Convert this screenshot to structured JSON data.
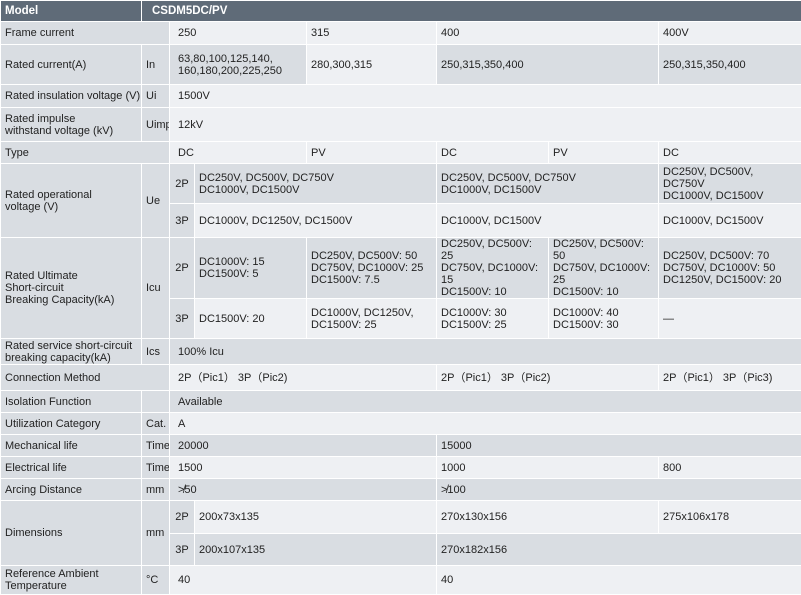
{
  "header": {
    "model_label": "Model",
    "model_value": "CSDM5DC/PV"
  },
  "frame_current": {
    "label": "Frame current",
    "v250": "250",
    "v315": "315",
    "v400": "400",
    "v400v": "400V"
  },
  "rated_current": {
    "label": "Rated current(A)",
    "sym": "In",
    "c250": "63,80,100,125,140,\n160,180,200,225,250",
    "c315": "280,300,315",
    "c400": "250,315,350,400",
    "c400v": "250,315,350,400"
  },
  "insulation": {
    "label": "Rated insulation voltage (V)",
    "sym": "Ui",
    "value": "1500V"
  },
  "impulse": {
    "label": "Rated impulse\nwithstand voltage (kV)",
    "sym": "Uimp",
    "value": "12kV"
  },
  "type": {
    "label": "Type",
    "dc1": "DC",
    "pv1": "PV",
    "dc2": "DC",
    "pv2": "PV",
    "dc3": "DC"
  },
  "operational": {
    "label": "Rated operational\nvoltage (V)",
    "sym": "Ue",
    "p2": "2P",
    "p3": "3P",
    "r2_a": "DC250V, DC500V, DC750V\nDC1000V, DC1500V",
    "r2_b": "DC250V, DC500V, DC750V\nDC1000V, DC1500V",
    "r2_c": "DC250V, DC500V, DC750V\nDC1000V, DC1500V",
    "r3_a": "DC1000V, DC1250V, DC1500V",
    "r3_b": "DC1000V, DC1500V",
    "r3_c": "DC1000V, DC1500V"
  },
  "ultimate": {
    "label": "Rated Ultimate\nShort-circuit\nBreaking Capacity(kA)",
    "sym": "Icu",
    "p2": "2P",
    "p3": "3P",
    "r2_1": "DC1000V: 15\nDC1500V: 5",
    "r2_2": "DC250V, DC500V: 50\nDC750V, DC1000V: 25\nDC1500V: 7.5",
    "r2_3": "DC250V, DC500V: 25\nDC750V, DC1000V: 15\nDC1500V: 10",
    "r2_4": "DC250V, DC500V: 50\nDC750V, DC1000V: 25\nDC1500V: 10",
    "r2_5": "DC250V, DC500V: 70\nDC750V, DC1000V: 50\nDC1250V, DC1500V: 20",
    "r3_1": "DC1500V: 20",
    "r3_2": "DC1000V, DC1250V,\nDC1500V: 25",
    "r3_3": "DC1000V: 30\nDC1500V: 25",
    "r3_4": "DC1000V: 40\nDC1500V: 30",
    "r3_5": "—"
  },
  "service": {
    "label": "Rated service short-circuit\nbreaking capacity(kA)",
    "sym": "Ics",
    "value": "100% Icu"
  },
  "connection": {
    "label": "Connection Method",
    "a": "2P（Pic1） 3P（Pic2)",
    "b": "2P（Pic1） 3P（Pic2)",
    "c": "2P（Pic1） 3P（Pic3)"
  },
  "isolation": {
    "label": "Isolation Function",
    "value": "Available"
  },
  "utilization": {
    "label": "Utilization Category",
    "sym": "Cat.",
    "value": "A"
  },
  "mechanical": {
    "label": "Mechanical life",
    "sym": "Times",
    "a": "20000",
    "b": "15000"
  },
  "electrical": {
    "label": "Electrical life",
    "sym": "Times",
    "a": "1500",
    "b": "1000",
    "c": "800"
  },
  "arcing": {
    "label": "Arcing Distance",
    "sym": "mm",
    "a": "≯50",
    "b": "≯100"
  },
  "dimensions": {
    "label": "Dimensions",
    "sym": "mm",
    "p2": "2P",
    "p3": "3P",
    "r2_a": "200x73x135",
    "r2_b": "270x130x156",
    "r2_c": "275x106x178",
    "r3_a": "200x107x135",
    "r3_b": "270x182x156"
  },
  "ambient": {
    "label": "Reference Ambient\nTemperature",
    "sym": "°C",
    "a": "40",
    "b": "40"
  },
  "colors": {
    "header_bg": "#5f6b78",
    "label_bg": "#d9dde2",
    "value_bg": "#eef0f3"
  }
}
